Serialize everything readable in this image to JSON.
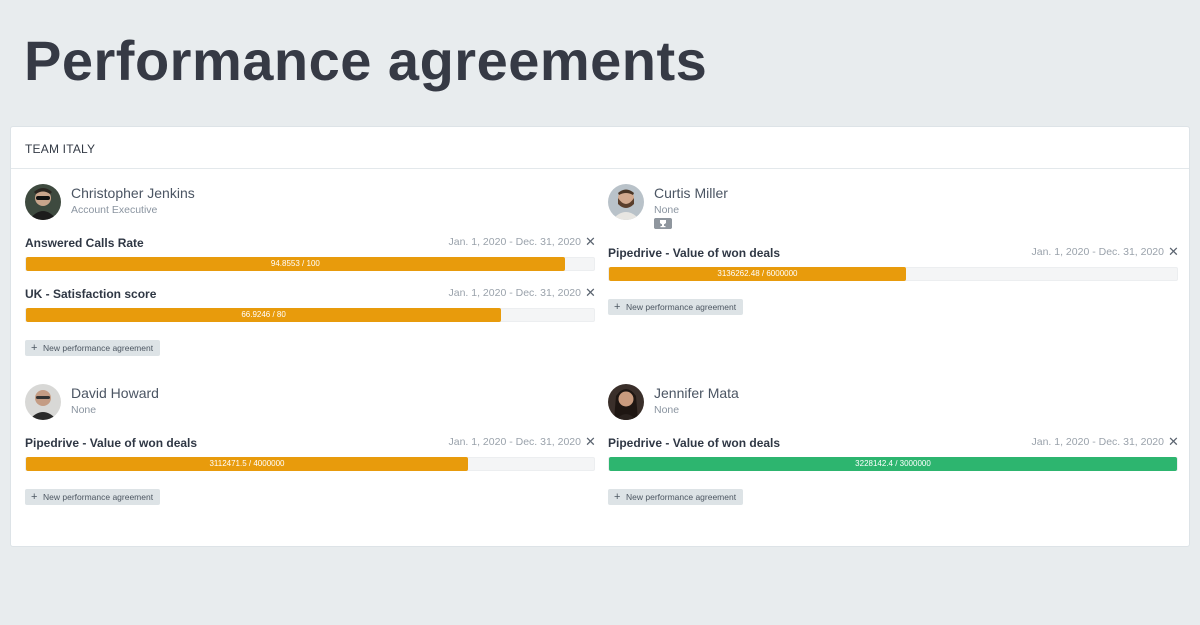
{
  "page": {
    "title": "Performance agreements"
  },
  "team": {
    "name": "TEAM ITALY"
  },
  "new_agreement_label": "New performance agreement",
  "colors": {
    "progress_incomplete": "#e89b0c",
    "progress_complete": "#2db56f",
    "accent": "#363a45"
  },
  "members": [
    {
      "name": "Christopher Jenkins",
      "role": "Account Executive",
      "trophy": false,
      "agreements": [
        {
          "title": "Answered Calls Rate",
          "period": "Jan. 1, 2020 - Dec. 31, 2020",
          "progress_text": "94.8553 / 100",
          "value": 94.8553,
          "target": 100,
          "complete": false
        },
        {
          "title": "UK - Satisfaction score",
          "period": "Jan. 1, 2020 - Dec. 31, 2020",
          "progress_text": "66.9246 / 80",
          "value": 66.9246,
          "target": 80,
          "complete": false
        }
      ]
    },
    {
      "name": "Curtis Miller",
      "role": "None",
      "trophy": true,
      "trophy_icon": "trophy-icon",
      "agreements": [
        {
          "title": "Pipedrive - Value of won deals",
          "period": "Jan. 1, 2020 - Dec. 31, 2020",
          "progress_text": "3136262.48 / 6000000",
          "value": 3136262.48,
          "target": 6000000,
          "complete": false
        }
      ]
    },
    {
      "name": "David Howard",
      "role": "None",
      "trophy": false,
      "agreements": [
        {
          "title": "Pipedrive - Value of won deals",
          "period": "Jan. 1, 2020 - Dec. 31, 2020",
          "progress_text": "3112471.5 / 4000000",
          "value": 3112471.5,
          "target": 4000000,
          "complete": false
        }
      ]
    },
    {
      "name": "Jennifer Mata",
      "role": "None",
      "trophy": false,
      "agreements": [
        {
          "title": "Pipedrive - Value of won deals",
          "period": "Jan. 1, 2020 - Dec. 31, 2020",
          "progress_text": "3228142.4 / 3000000",
          "value": 3228142.4,
          "target": 3000000,
          "complete": true
        }
      ]
    }
  ]
}
